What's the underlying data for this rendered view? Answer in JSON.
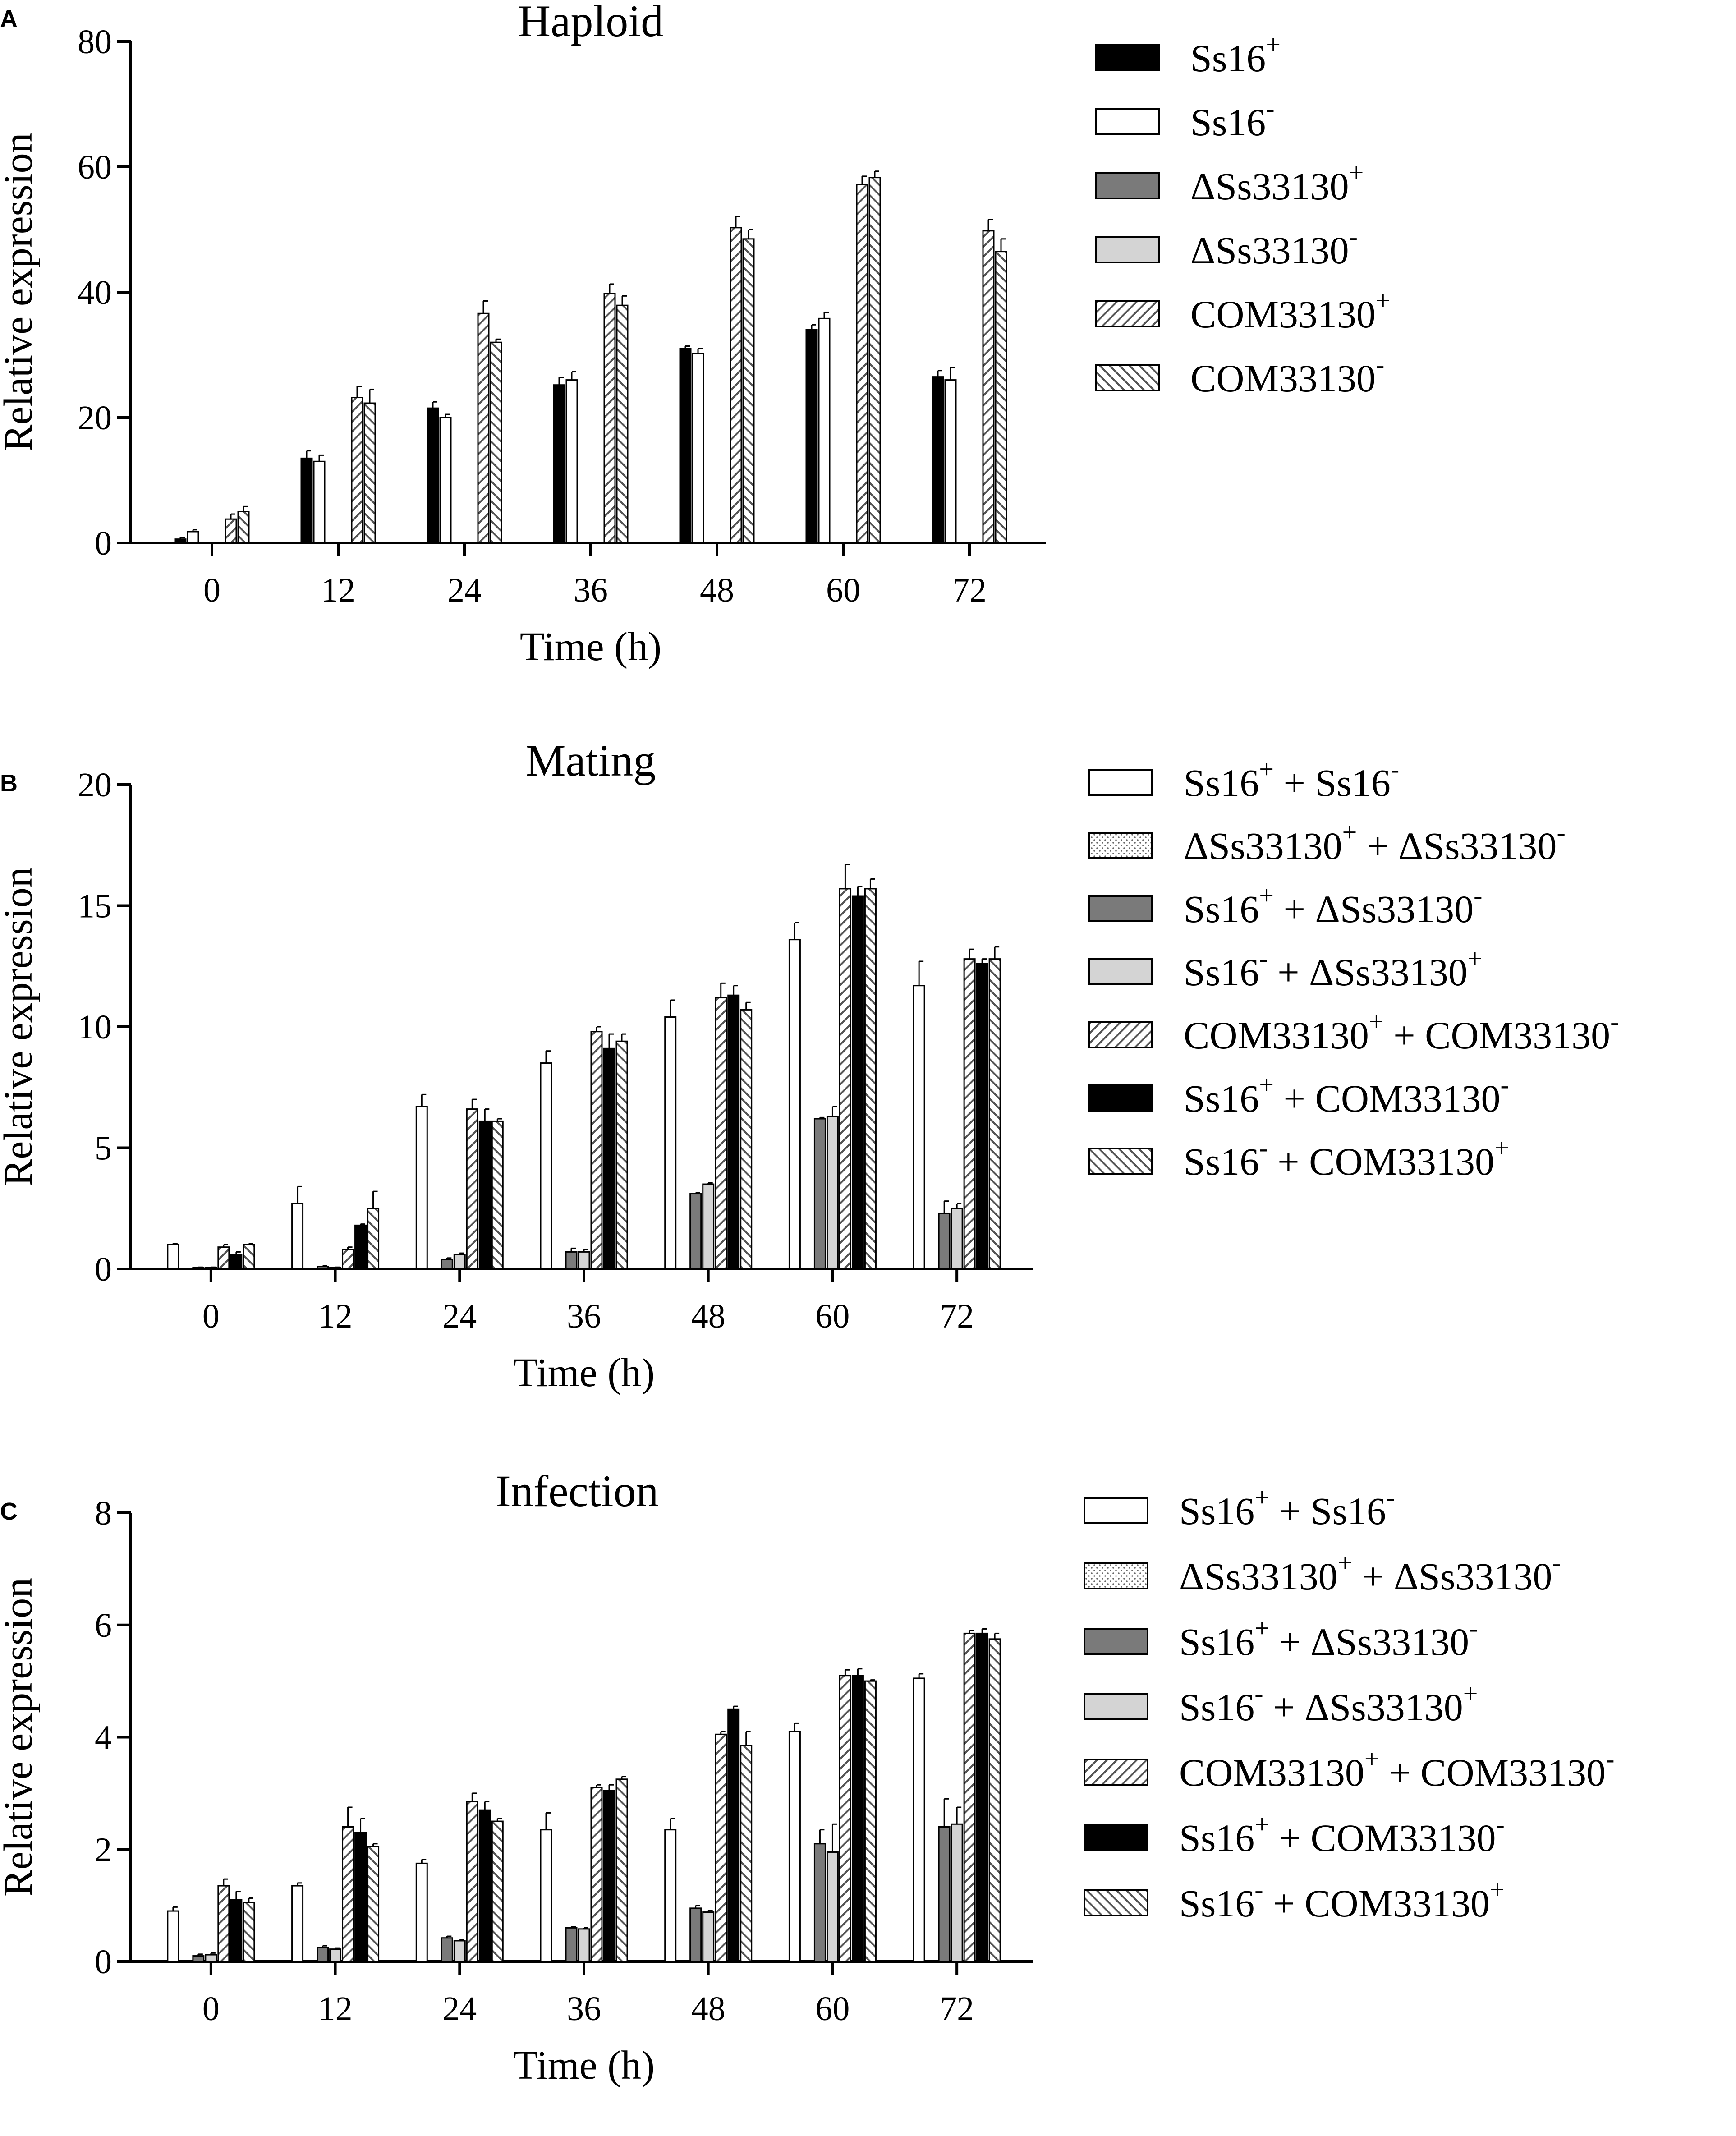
{
  "colors": {
    "black": "#000000",
    "white": "#ffffff",
    "dark_gray": "#7a7a7a",
    "light_gray": "#d4d4d4",
    "stroke": "#000000"
  },
  "chart_data": [
    {
      "id": "A",
      "type": "bar",
      "panel_letter": "A",
      "title": "Haploid",
      "xlabel": "Time (h)",
      "ylabel": "Relative expression",
      "categories": [
        "0",
        "12",
        "24",
        "36",
        "48",
        "60",
        "72"
      ],
      "ylim": [
        0,
        80
      ],
      "yticks": [
        0,
        20,
        40,
        60,
        80
      ],
      "series": [
        {
          "name": "Ss16+",
          "label": "Ss16",
          "sup": "+",
          "pattern": "solid-black",
          "values": [
            0.6,
            13.5,
            21.5,
            25.2,
            31.0,
            34.0,
            26.5
          ],
          "errors": [
            0.3,
            1.2,
            1.0,
            1.2,
            0.4,
            0.8,
            1.0
          ]
        },
        {
          "name": "Ss16-",
          "label": "Ss16",
          "sup": "-",
          "pattern": "white",
          "values": [
            1.8,
            13.0,
            20.0,
            26.0,
            30.2,
            35.8,
            26.0
          ],
          "errors": [
            0.3,
            1.0,
            0.5,
            1.3,
            0.8,
            1.0,
            2.0
          ]
        },
        {
          "name": "ΔSs33130+",
          "label": "ΔSs33130",
          "sup": "+",
          "pattern": "dark-gray",
          "values": [
            0,
            0,
            0,
            0,
            0,
            0,
            0
          ],
          "errors": [
            0,
            0,
            0,
            0,
            0,
            0,
            0
          ]
        },
        {
          "name": "ΔSs33130-",
          "label": "ΔSs33130",
          "sup": "-",
          "pattern": "light-gray",
          "values": [
            0,
            0,
            0,
            0,
            0,
            0,
            0
          ],
          "errors": [
            0,
            0,
            0,
            0,
            0,
            0,
            0
          ]
        },
        {
          "name": "COM33130+",
          "label": "COM33130",
          "sup": "+",
          "pattern": "hatch-forward",
          "values": [
            3.8,
            23.2,
            36.6,
            39.8,
            50.3,
            57.2,
            49.8
          ],
          "errors": [
            0.8,
            1.8,
            2.0,
            1.5,
            1.8,
            1.3,
            1.8
          ]
        },
        {
          "name": "COM33130-",
          "label": "COM33130",
          "sup": "-",
          "pattern": "hatch-back",
          "values": [
            5.0,
            22.3,
            32.0,
            37.9,
            48.5,
            58.3,
            46.5
          ],
          "errors": [
            0.8,
            2.2,
            0.5,
            1.5,
            1.5,
            1.0,
            2.0
          ]
        }
      ]
    },
    {
      "id": "B",
      "type": "bar",
      "panel_letter": "B",
      "title": "Mating",
      "xlabel": "Time (h)",
      "ylabel": "Relative expression",
      "categories": [
        "0",
        "12",
        "24",
        "36",
        "48",
        "60",
        "72"
      ],
      "ylim": [
        0,
        20
      ],
      "yticks": [
        0,
        5,
        10,
        15,
        20
      ],
      "series": [
        {
          "name": "Ss16+ + Ss16-",
          "parts": [
            [
              "Ss16",
              "+"
            ],
            [
              " + Ss16",
              "-"
            ]
          ],
          "pattern": "white",
          "values": [
            1.0,
            2.7,
            6.7,
            8.5,
            10.4,
            13.6,
            11.7
          ],
          "errors": [
            0.05,
            0.7,
            0.5,
            0.5,
            0.7,
            0.7,
            1.0
          ]
        },
        {
          "name": "ΔSs33130+ + ΔSs33130-",
          "parts": [
            [
              "ΔSs33130",
              "+"
            ],
            [
              " + ΔSs33130",
              "-"
            ]
          ],
          "pattern": "dots",
          "values": [
            0,
            0,
            0,
            0,
            0,
            0,
            0
          ],
          "errors": [
            0,
            0,
            0,
            0,
            0,
            0,
            0
          ]
        },
        {
          "name": "Ss16+ + ΔSs33130-",
          "parts": [
            [
              "Ss16",
              "+"
            ],
            [
              " + ΔSs33130",
              "-"
            ]
          ],
          "pattern": "dark-gray",
          "values": [
            0.05,
            0.1,
            0.4,
            0.7,
            3.1,
            6.2,
            2.3
          ],
          "errors": [
            0.02,
            0.03,
            0.05,
            0.15,
            0.05,
            0.05,
            0.5
          ]
        },
        {
          "name": "Ss16- + ΔSs33130+",
          "parts": [
            [
              "Ss16",
              "-"
            ],
            [
              " + ΔSs33130",
              "+"
            ]
          ],
          "pattern": "light-gray",
          "values": [
            0.05,
            0.05,
            0.6,
            0.7,
            3.5,
            6.3,
            2.5
          ],
          "errors": [
            0.02,
            0.02,
            0.05,
            0.1,
            0.05,
            0.4,
            0.2
          ]
        },
        {
          "name": "COM33130+ + COM33130-",
          "parts": [
            [
              "COM33130",
              "+"
            ],
            [
              " + COM33130",
              "-"
            ]
          ],
          "pattern": "hatch-forward",
          "values": [
            0.9,
            0.8,
            6.6,
            9.8,
            11.2,
            15.7,
            12.8
          ],
          "errors": [
            0.1,
            0.1,
            0.4,
            0.2,
            0.6,
            1.0,
            0.4
          ]
        },
        {
          "name": "Ss16+ + COM33130-",
          "parts": [
            [
              "Ss16",
              "+"
            ],
            [
              " + COM33130",
              "-"
            ]
          ],
          "pattern": "solid-black",
          "values": [
            0.6,
            1.8,
            6.1,
            9.1,
            11.3,
            15.4,
            12.6
          ],
          "errors": [
            0.1,
            0.05,
            0.5,
            0.6,
            0.4,
            0.4,
            0.2
          ]
        },
        {
          "name": "Ss16- + COM33130+",
          "parts": [
            [
              "Ss16",
              "-"
            ],
            [
              " + COM33130",
              "+"
            ]
          ],
          "pattern": "hatch-back",
          "values": [
            1.0,
            2.5,
            6.1,
            9.4,
            10.7,
            15.7,
            12.8
          ],
          "errors": [
            0.05,
            0.7,
            0.1,
            0.3,
            0.3,
            0.4,
            0.5
          ]
        }
      ]
    },
    {
      "id": "C",
      "type": "bar",
      "panel_letter": "C",
      "title": "Infection",
      "xlabel": "Time (h)",
      "ylabel": "Relative expression",
      "categories": [
        "0",
        "12",
        "24",
        "36",
        "48",
        "60",
        "72"
      ],
      "ylim": [
        0,
        8
      ],
      "yticks": [
        0,
        2,
        4,
        6,
        8
      ],
      "series": [
        {
          "name": "Ss16+ + Ss16-",
          "parts": [
            [
              "Ss16",
              "+"
            ],
            [
              " + Ss16",
              "-"
            ]
          ],
          "pattern": "white",
          "values": [
            0.9,
            1.35,
            1.75,
            2.35,
            2.35,
            4.1,
            5.05
          ],
          "errors": [
            0.07,
            0.05,
            0.07,
            0.3,
            0.2,
            0.15,
            0.08
          ]
        },
        {
          "name": "ΔSs33130+ + ΔSs33130-",
          "parts": [
            [
              "ΔSs33130",
              "+"
            ],
            [
              " + ΔSs33130",
              "-"
            ]
          ],
          "pattern": "dots",
          "values": [
            0,
            0,
            0,
            0,
            0,
            0,
            0
          ],
          "errors": [
            0,
            0,
            0,
            0,
            0,
            0,
            0
          ]
        },
        {
          "name": "Ss16+ + ΔSs33130-",
          "parts": [
            [
              "Ss16",
              "+"
            ],
            [
              " + ΔSs33130",
              "-"
            ]
          ],
          "pattern": "dark-gray",
          "values": [
            0.1,
            0.25,
            0.42,
            0.6,
            0.95,
            2.1,
            2.4
          ],
          "errors": [
            0.03,
            0.03,
            0.03,
            0.02,
            0.05,
            0.25,
            0.5
          ]
        },
        {
          "name": "Ss16- + ΔSs33130+",
          "parts": [
            [
              "Ss16",
              "-"
            ],
            [
              " + ΔSs33130",
              "+"
            ]
          ],
          "pattern": "light-gray",
          "values": [
            0.12,
            0.22,
            0.37,
            0.58,
            0.88,
            1.95,
            2.45
          ],
          "errors": [
            0.03,
            0.02,
            0.02,
            0.02,
            0.03,
            0.5,
            0.3
          ]
        },
        {
          "name": "COM33130+ + COM33130-",
          "parts": [
            [
              "COM33130",
              "+"
            ],
            [
              " + COM33130",
              "-"
            ]
          ],
          "pattern": "hatch-forward",
          "values": [
            1.35,
            2.4,
            2.85,
            3.1,
            4.05,
            5.1,
            5.85
          ],
          "errors": [
            0.12,
            0.35,
            0.15,
            0.05,
            0.05,
            0.1,
            0.05
          ]
        },
        {
          "name": "Ss16+ + COM33130-",
          "parts": [
            [
              "Ss16",
              "+"
            ],
            [
              " + COM33130",
              "-"
            ]
          ],
          "pattern": "solid-black",
          "values": [
            1.1,
            2.3,
            2.7,
            3.05,
            4.5,
            5.1,
            5.85
          ],
          "errors": [
            0.15,
            0.25,
            0.15,
            0.1,
            0.05,
            0.12,
            0.08
          ]
        },
        {
          "name": "Ss16- + COM33130+",
          "parts": [
            [
              "Ss16",
              "-"
            ],
            [
              " + COM33130",
              "+"
            ]
          ],
          "pattern": "hatch-back",
          "values": [
            1.05,
            2.05,
            2.5,
            3.25,
            3.85,
            5.0,
            5.75
          ],
          "errors": [
            0.08,
            0.05,
            0.05,
            0.05,
            0.25,
            0.02,
            0.1
          ]
        }
      ]
    }
  ]
}
